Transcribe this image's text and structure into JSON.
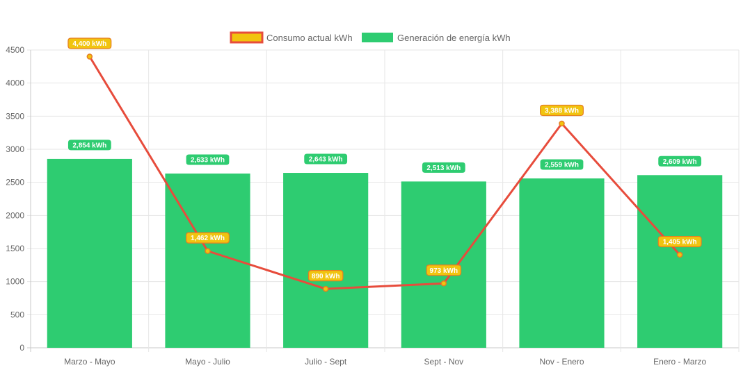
{
  "chart_data": {
    "type": "bar",
    "categories": [
      "Marzo - Mayo",
      "Mayo - Julio",
      "Julio - Sept",
      "Sept - Nov",
      "Nov - Enero",
      "Enero - Marzo"
    ],
    "ylim": [
      0,
      4500
    ],
    "yticks": [
      0,
      500,
      1000,
      1500,
      2000,
      2500,
      3000,
      3500,
      4000,
      4500
    ],
    "grid": true,
    "legend_position": "top",
    "series": [
      {
        "name": "Consumo actual kWh",
        "type": "line",
        "values": [
          4400,
          1462,
          890,
          973,
          3388,
          1405
        ],
        "labels": [
          "4,400 kWh",
          "1,462 kWh",
          "890 kWh",
          "973 kWh",
          "3,388 kWh",
          "1,405 kWh"
        ],
        "line_color": "#e74c3c",
        "label_fill": "#f1c40f",
        "label_border": "#e67e22"
      },
      {
        "name": "Generación de energía kWh",
        "type": "bar",
        "values": [
          2854,
          2633,
          2643,
          2513,
          2559,
          2609
        ],
        "labels": [
          "2,854 kWh",
          "2,633 kWh",
          "2,643 kWh",
          "2,513 kWh",
          "2,559 kWh",
          "2,609 kWh"
        ],
        "bar_color": "#2ecc71"
      }
    ]
  }
}
